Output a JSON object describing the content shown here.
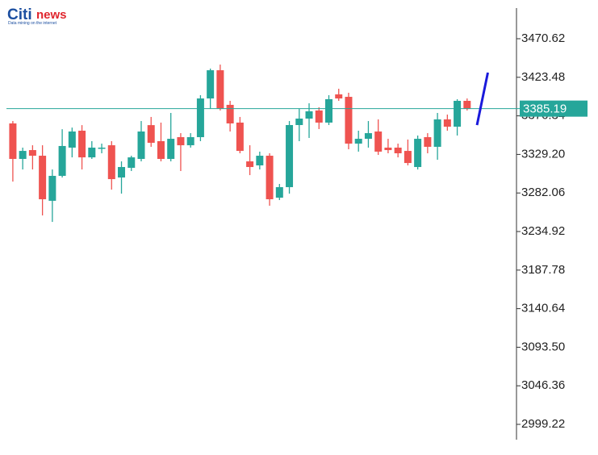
{
  "logo": {
    "brand_part1": "Citi",
    "brand_part2": "news",
    "tagline": "Data mining on the internet"
  },
  "chart_data": {
    "type": "candlestick",
    "up_color": "#26a69a",
    "down_color": "#ef5350",
    "xlim": [
      -1.3,
      51
    ],
    "ylim": [
      2980.5,
      3508.1
    ],
    "yticks": [
      3470.62,
      3423.48,
      3376.34,
      {
        "value": 3329.2,
        "label": "3329.20"
      },
      3282.06,
      3234.92,
      3187.78,
      3140.64,
      {
        "value": 3093.5,
        "label": "3093.50"
      },
      3046.36,
      2999.22
    ],
    "open": [
      3367.1,
      3323.7,
      3334.5,
      3327.6,
      3272.5,
      3303.0,
      3337.5,
      3358.2,
      3325.6,
      3336.5,
      3340.4,
      3301.0,
      3312.8,
      3323.7,
      3365.0,
      3345.4,
      3323.7,
      3350.3,
      3340.4,
      3350.3,
      3397.6,
      3432.1,
      3389.8,
      3368.1,
      3320.7,
      3315.8,
      3327.6,
      3276.3,
      3289.2,
      3365.1,
      3373.0,
      3382.9,
      3368.1,
      3402.6,
      3399.6,
      3342.4,
      3348.3,
      3357.2,
      3337.5,
      3337.5,
      3333.5,
      3313.8,
      3350.3,
      3338.5,
      3372.0,
      3363.1,
      3394.7
    ],
    "high": [
      3370.0,
      3337.5,
      3340.4,
      3340.4,
      3310.8,
      3360.0,
      3362.0,
      3365.0,
      3345.4,
      3342.4,
      3345.4,
      3320.7,
      3327.6,
      3370.0,
      3375.0,
      3368.1,
      3379.9,
      3355.2,
      3355.2,
      3401.6,
      3434.1,
      3439.0,
      3394.7,
      3375.0,
      3340.4,
      3332.6,
      3330.6,
      3293.1,
      3370.0,
      3384.8,
      3391.7,
      3386.8,
      3401.6,
      3409.5,
      3404.6,
      3358.2,
      3370.0,
      3372.0,
      3348.3,
      3342.4,
      3347.4,
      3352.3,
      3355.2,
      3379.9,
      3377.9,
      3396.7,
      3397.6
    ],
    "low": [
      3296.0,
      3310.8,
      3310.8,
      3254.6,
      3246.7,
      3301.0,
      3325.6,
      3310.8,
      3323.7,
      3330.6,
      3286.2,
      3281.3,
      3308.9,
      3320.7,
      3338.5,
      3320.7,
      3320.7,
      3308.9,
      3337.5,
      3345.4,
      3384.8,
      3382.9,
      3357.2,
      3330.6,
      3303.9,
      3310.8,
      3266.5,
      3273.4,
      3281.3,
      3345.4,
      3349.3,
      3360.2,
      3365.1,
      3394.7,
      3335.5,
      3332.6,
      3337.5,
      3328.6,
      3330.6,
      3325.6,
      3315.8,
      3310.8,
      3330.6,
      3322.7,
      3358.2,
      3352.3,
      3382.9
    ],
    "close": [
      3323.7,
      3333.5,
      3327.6,
      3274.4,
      3303.0,
      3339.5,
      3357.2,
      3325.6,
      3337.5,
      3337.5,
      3299.0,
      3313.8,
      3325.6,
      3357.2,
      3343.4,
      3323.7,
      3348.3,
      3340.4,
      3350.3,
      3397.6,
      3432.1,
      3384.8,
      3367.1,
      3333.5,
      3313.8,
      3327.6,
      3274.4,
      3289.2,
      3365.1,
      3373.0,
      3381.9,
      3368.1,
      3396.7,
      3397.6,
      3342.4,
      3348.3,
      3355.2,
      3332.6,
      3334.5,
      3330.6,
      3318.7,
      3348.3,
      3338.5,
      3372.0,
      3363.1,
      3394.7,
      3384.8
    ],
    "current_price": {
      "value": 3385.19,
      "label": "3385.19",
      "color": "#26a69a"
    },
    "trend_line": {
      "x": [
        47.0,
        48.1
      ],
      "values": [
        3365.0,
        3429.2
      ],
      "color": "#1a1adb"
    }
  }
}
